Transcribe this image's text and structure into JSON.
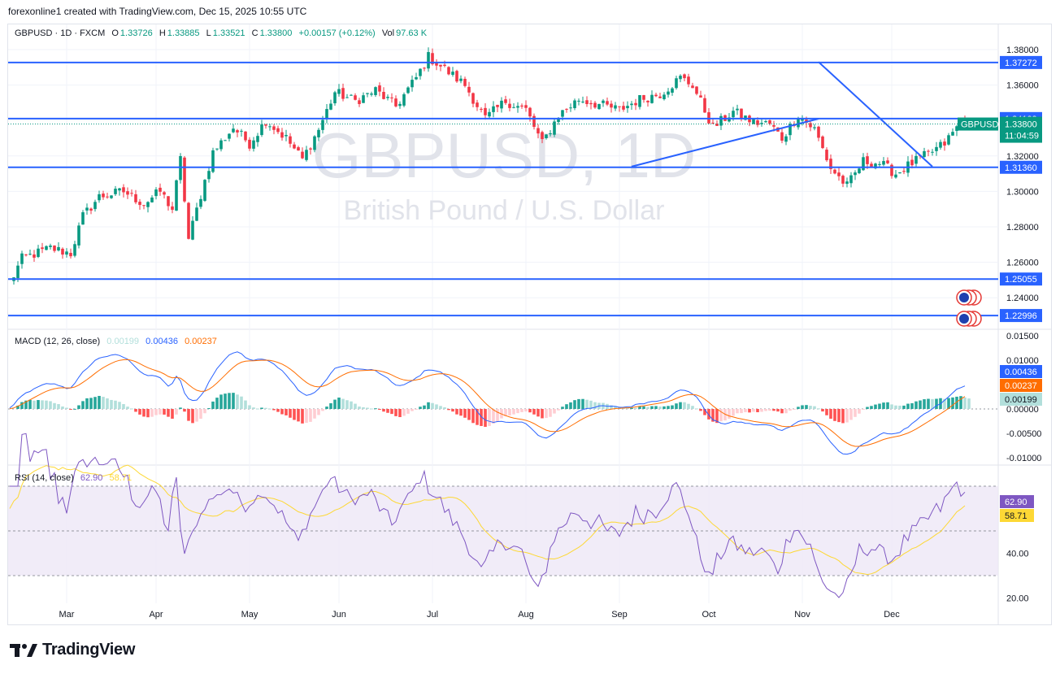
{
  "header": {
    "caption": "forexonline1 created with TradingView.com, Dec 15, 2025 10:55 UTC"
  },
  "legend": {
    "symbol": "GBPUSD · 1D · FXCM",
    "o_label": "O",
    "o": "1.33726",
    "h_label": "H",
    "h": "1.33885",
    "l_label": "L",
    "l": "1.33521",
    "c_label": "C",
    "c": "1.33800",
    "change": "+0.00157 (+0.12%)",
    "vol_label": "Vol",
    "vol": "97.63 K"
  },
  "watermark": {
    "main": "GBPUSD, 1D",
    "sub": "British Pound / U.S. Dollar"
  },
  "colors": {
    "up": "#089981",
    "down": "#f23645",
    "line": "#2962ff",
    "macd_signal": "#ff6d00",
    "rsi": "#7e57c2",
    "rsi_ma": "#fdd835",
    "hist_up_strong": "#26a69a",
    "hist_up_weak": "#b2dfdb",
    "hist_down_strong": "#ff5252",
    "hist_down_weak": "#ffcdd2",
    "rsi_bg": "#ede7f6"
  },
  "price_axis": {
    "ticks": [
      "1.38000",
      "1.36000",
      "1.34000",
      "1.32000",
      "1.30000",
      "1.28000",
      "1.26000",
      "1.24000"
    ],
    "tick_values": [
      1.38,
      1.36,
      1.34,
      1.32,
      1.3,
      1.28,
      1.26,
      1.24
    ],
    "level_labels": [
      {
        "text": "1.37272",
        "value": 1.37272
      },
      {
        "text": "1.34109",
        "value": 1.34109
      },
      {
        "text": "1.31360",
        "value": 1.3136
      },
      {
        "text": "1.25055",
        "value": 1.25055
      },
      {
        "text": "1.22996",
        "value": 1.22996
      }
    ],
    "current_symbol": "GBPUSD",
    "current_price": "1.33800",
    "countdown": "11:04:59"
  },
  "x_axis": {
    "months": [
      "Mar",
      "Apr",
      "May",
      "Jun",
      "Jul",
      "Aug",
      "Sep",
      "Oct",
      "Nov",
      "Dec"
    ]
  },
  "macd": {
    "title": "MACD (12, 26, close)",
    "hist": "0.00199",
    "macd": "0.00436",
    "signal": "0.00237",
    "ticks": [
      "0.01500",
      "0.01000",
      "0.00500",
      "0.00000",
      "-0.00500",
      "-0.01000"
    ],
    "tick_values": [
      0.015,
      0.01,
      0.005,
      0.0,
      -0.005,
      -0.01
    ],
    "badges": [
      "0.00436",
      "0.00237",
      "0.00199"
    ]
  },
  "rsi": {
    "title": "RSI (14, close)",
    "value": "62.90",
    "ma": "58.71",
    "ticks": [
      "40.00",
      "20.00"
    ],
    "tick_values": [
      40,
      20
    ],
    "badges": [
      "62.90",
      "58.71"
    ],
    "upper_band": 70,
    "middle_band": 50,
    "lower_band": 30
  },
  "chart_data": {
    "type": "candlestick",
    "title": "GBPUSD, 1D",
    "subtitle": "British Pound / U.S. Dollar",
    "price_range": [
      1.225,
      1.385
    ],
    "anchors": [
      [
        0,
        1.248
      ],
      [
        3,
        1.262
      ],
      [
        10,
        1.268
      ],
      [
        15,
        1.265
      ],
      [
        18,
        1.286
      ],
      [
        22,
        1.297
      ],
      [
        28,
        1.3
      ],
      [
        33,
        1.293
      ],
      [
        37,
        1.3
      ],
      [
        40,
        1.29
      ],
      [
        42,
        1.318
      ],
      [
        44,
        1.273
      ],
      [
        47,
        1.298
      ],
      [
        50,
        1.322
      ],
      [
        55,
        1.336
      ],
      [
        59,
        1.327
      ],
      [
        63,
        1.34
      ],
      [
        68,
        1.33
      ],
      [
        72,
        1.318
      ],
      [
        76,
        1.335
      ],
      [
        80,
        1.356
      ],
      [
        85,
        1.351
      ],
      [
        90,
        1.357
      ],
      [
        95,
        1.348
      ],
      [
        100,
        1.364
      ],
      [
        103,
        1.376
      ],
      [
        107,
        1.369
      ],
      [
        112,
        1.36
      ],
      [
        117,
        1.341
      ],
      [
        122,
        1.351
      ],
      [
        127,
        1.346
      ],
      [
        131,
        1.327
      ],
      [
        135,
        1.343
      ],
      [
        140,
        1.352
      ],
      [
        145,
        1.349
      ],
      [
        150,
        1.346
      ],
      [
        155,
        1.352
      ],
      [
        160,
        1.355
      ],
      [
        165,
        1.364
      ],
      [
        168,
        1.36
      ],
      [
        173,
        1.336
      ],
      [
        178,
        1.345
      ],
      [
        183,
        1.339
      ],
      [
        187,
        1.338
      ],
      [
        190,
        1.33
      ],
      [
        194,
        1.343
      ],
      [
        198,
        1.335
      ],
      [
        202,
        1.313
      ],
      [
        206,
        1.303
      ],
      [
        210,
        1.317
      ],
      [
        214,
        1.316
      ],
      [
        218,
        1.31
      ],
      [
        222,
        1.316
      ],
      [
        226,
        1.321
      ],
      [
        230,
        1.327
      ],
      [
        234,
        1.339
      ],
      [
        236,
        1.338
      ]
    ],
    "trendlines": [
      {
        "from": [
          153,
          1.314
        ],
        "to": [
          199,
          1.341
        ]
      },
      {
        "from": [
          199,
          1.373
        ],
        "to": [
          227,
          1.314
        ]
      }
    ],
    "horizontal_levels": [
      1.37272,
      1.34109,
      1.3136,
      1.25055,
      1.22996
    ],
    "macd": {
      "macd": 0.00436,
      "signal": 0.00237,
      "histogram": 0.00199,
      "range": [
        -0.012,
        0.016
      ]
    },
    "rsi": {
      "value": 62.9,
      "ma": 58.71,
      "range": [
        15,
        75
      ]
    }
  }
}
